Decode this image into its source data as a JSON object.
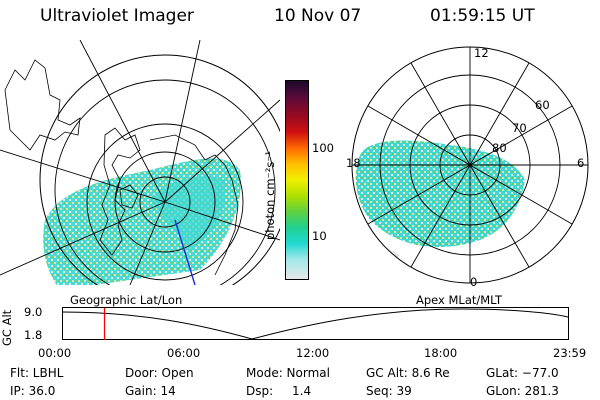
{
  "header": {
    "title": "Ultraviolet Imager",
    "date": "10 Nov 07",
    "time": "01:59:15 UT"
  },
  "colors": {
    "aurora_cyan": "#3fd8d0",
    "aurora_green": "#5ad25a",
    "aurora_pale": "#d9dcde",
    "map_line": "#000000",
    "time_marker": "#ff0000",
    "scan_line": "#1a2ad8"
  },
  "colorbar": {
    "label": "photon cm⁻²s⁻¹",
    "ticks": [
      "100",
      "10"
    ],
    "stops": [
      "#1a0a2a",
      "#5a0a3a",
      "#9a0a20",
      "#d01010",
      "#ff6a00",
      "#ffc000",
      "#f0f000",
      "#b0e000",
      "#60d040",
      "#20d090",
      "#20d8d0",
      "#a0e8e8",
      "#e8e8e8"
    ]
  },
  "left_panel": {
    "caption": "Geographic Lat/Lon"
  },
  "right_panel": {
    "caption": "Apex MLat/MLT",
    "mlt_labels": {
      "top": "12",
      "left": "18",
      "right": "6",
      "bottom": "0"
    },
    "lat_labels": [
      "60",
      "70",
      "80"
    ]
  },
  "altitude_plot": {
    "ylabel": "GC Alt",
    "yticks": [
      "9.0",
      "1.8"
    ],
    "xticks": [
      "00:00",
      "06:00",
      "12:00",
      "18:00",
      "23:59"
    ],
    "current_time_fraction": 0.083
  },
  "info": {
    "filter": "Flt: LBHL",
    "door": "Door: Open",
    "mode": "Mode: Normal",
    "gc_alt": "GC Alt: 8.6 Re",
    "glat": "GLat: −77.0",
    "ip": "IP: 36.0",
    "gain": "Gain: 14",
    "dsp_label": "Dsp:",
    "dsp_value": "1.4",
    "seq": "Seq: 39",
    "glon": "GLon: 281.3"
  }
}
